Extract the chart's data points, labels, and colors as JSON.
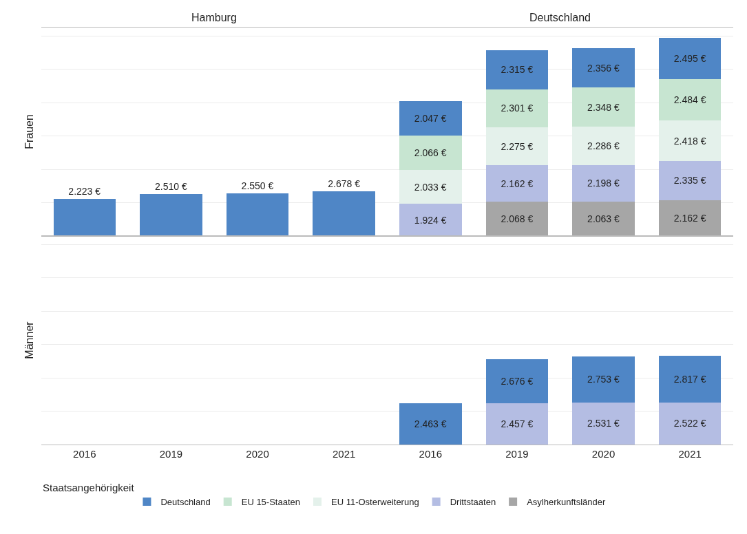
{
  "chart_data": [
    {
      "type": "bar",
      "annotations": [
        "Hamburg",
        "Deutschland"
      ],
      "ylabel": "Frauen",
      "categories": [
        "2016",
        "2019",
        "2020",
        "2021",
        "2016",
        "2019",
        "2020",
        "2021"
      ],
      "stacked": true,
      "ylim": [
        0,
        12500
      ],
      "yticks": [
        {
          "value": 0,
          "label": null
        },
        {
          "value": 2000,
          "label": null
        },
        {
          "value": 4000,
          "label": null
        },
        {
          "value": 6000,
          "label": null
        },
        {
          "value": 8000,
          "label": null
        },
        {
          "value": 10000,
          "label": null
        },
        {
          "value": 12000,
          "label": null
        }
      ],
      "grid": "y",
      "tick_labels": false,
      "legend": "bottom left",
      "legend_title": "Staatsangehörigkeit",
      "series": [
        {
          "name": "Asylherkunftsländer",
          "color": "#a6a6a6",
          "values": [
            null,
            null,
            null,
            null,
            null,
            2068,
            2063,
            2162
          ],
          "value_labels": [
            null,
            null,
            null,
            null,
            null,
            "2.068 €",
            "2.063 €",
            "2.162 €"
          ]
        },
        {
          "name": "Drittstaaten",
          "color": "#b4bde3",
          "values": [
            null,
            null,
            null,
            null,
            1924,
            2162,
            2198,
            2335
          ],
          "value_labels": [
            null,
            null,
            null,
            null,
            "1.924 €",
            "2.162 €",
            "2.198 €",
            "2.335 €"
          ]
        },
        {
          "name": "EU 11-Osterweiterung",
          "color": "#e4f1eb",
          "values": [
            null,
            null,
            null,
            null,
            2033,
            2275,
            2286,
            2418
          ],
          "value_labels": [
            null,
            null,
            null,
            null,
            "2.033 €",
            "2.275 €",
            "2.286 €",
            "2.418 €"
          ]
        },
        {
          "name": "EU 15-Staaten",
          "color": "#c7e5d1",
          "values": [
            null,
            null,
            null,
            null,
            2066,
            2301,
            2348,
            2484
          ],
          "value_labels": [
            null,
            null,
            null,
            null,
            "2.066 €",
            "2.301 €",
            "2.348 €",
            "2.484 €"
          ]
        },
        {
          "name": "Deutschland",
          "color": "#4f86c6",
          "values": [
            2223,
            2510,
            2550,
            2678,
            2047,
            2315,
            2356,
            2495
          ],
          "value_labels": [
            "2.223 €",
            "2.510 €",
            "2.550 €",
            "2.678 €",
            "2.047 €",
            "2.315 €",
            "2.356 €",
            "2.495 €"
          ]
        }
      ]
    },
    {
      "type": "bar",
      "ylabel": "Männer",
      "categories": [
        "2016",
        "2019",
        "2020",
        "2021",
        "2016",
        "2019",
        "2020",
        "2021"
      ],
      "stacked": true,
      "ylim": [
        0,
        12500
      ],
      "yticks": [
        {
          "value": 0,
          "label": null
        },
        {
          "value": 2000,
          "label": null
        },
        {
          "value": 4000,
          "label": null
        },
        {
          "value": 6000,
          "label": null
        },
        {
          "value": 8000,
          "label": null
        },
        {
          "value": 10000,
          "label": null
        },
        {
          "value": 12000,
          "label": null
        }
      ],
      "grid": "y",
      "tick_labels": "x",
      "series": [
        {
          "color": "#b4bde3",
          "values": [
            null,
            null,
            null,
            null,
            null,
            2457,
            2531,
            2522
          ],
          "value_labels": [
            null,
            null,
            null,
            null,
            null,
            "2.457 €",
            "2.531 €",
            "2.522 €"
          ]
        },
        {
          "color": "#4f86c6",
          "values": [
            null,
            null,
            null,
            null,
            2463,
            2676,
            2753,
            2817
          ],
          "value_labels": [
            null,
            null,
            null,
            null,
            "2.463 €",
            "2.676 €",
            "2.753 €",
            "2.817 €"
          ]
        }
      ]
    }
  ]
}
